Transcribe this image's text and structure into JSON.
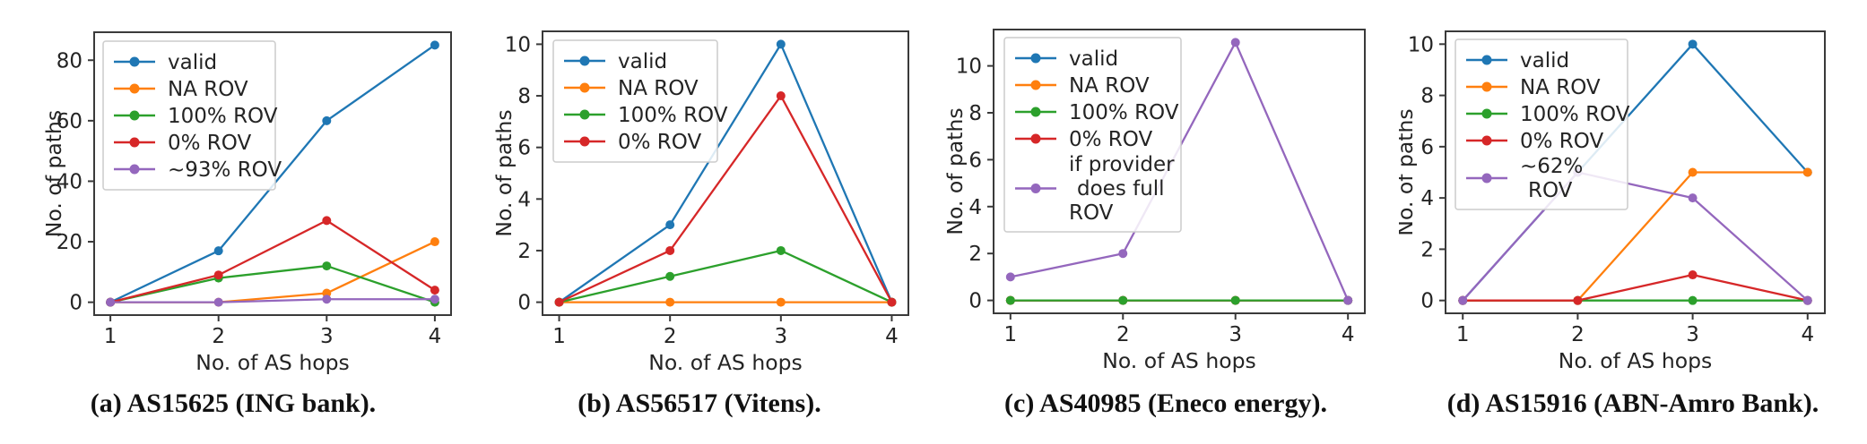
{
  "figure": {
    "xlabel": "No. of AS hops",
    "ylabel": "No. of paths"
  },
  "colors": {
    "valid": "#1f77b4",
    "na_rov": "#ff7f0e",
    "rov_100": "#2ca02c",
    "rov_0": "#d62728",
    "rov_partial": "#9467bd",
    "axis": "#3a3a3a",
    "legend_border": "#cccccc"
  },
  "chart_data": [
    {
      "type": "line",
      "caption": "(a) AS15625 (ING bank).",
      "xlabel": "No. of AS hops",
      "ylabel": "No. of paths",
      "x": [
        1,
        2,
        3,
        4
      ],
      "xticks": [
        1,
        2,
        3,
        4
      ],
      "xlim": [
        0.85,
        4.15
      ],
      "yticks": [
        0,
        20,
        40,
        60,
        80
      ],
      "ylim": [
        -4.25,
        89.25
      ],
      "legend_position": "upper left",
      "grid": false,
      "series": [
        {
          "label": "valid",
          "color": "#1f77b4",
          "values": [
            0,
            17,
            60,
            85
          ]
        },
        {
          "label": "NA ROV",
          "color": "#ff7f0e",
          "values": [
            0,
            0,
            3,
            20
          ]
        },
        {
          "label": "100% ROV",
          "color": "#2ca02c",
          "values": [
            0,
            8,
            12,
            0
          ]
        },
        {
          "label": "0% ROV",
          "color": "#d62728",
          "values": [
            0,
            9,
            27,
            4
          ]
        },
        {
          "label": "~93% ROV",
          "color": "#9467bd",
          "values": [
            0,
            0,
            1,
            1
          ]
        }
      ]
    },
    {
      "type": "line",
      "caption": "(b) AS56517 (Vitens).",
      "xlabel": "No. of AS hops",
      "ylabel": "No. of paths",
      "x": [
        1,
        2,
        3,
        4
      ],
      "xticks": [
        1,
        2,
        3,
        4
      ],
      "xlim": [
        0.85,
        4.15
      ],
      "yticks": [
        0,
        2,
        4,
        6,
        8,
        10
      ],
      "ylim": [
        -0.5,
        10.5
      ],
      "legend_position": "upper left",
      "grid": false,
      "series": [
        {
          "label": "valid",
          "color": "#1f77b4",
          "values": [
            0,
            3,
            10,
            0
          ]
        },
        {
          "label": "NA ROV",
          "color": "#ff7f0e",
          "values": [
            0,
            0,
            0,
            0
          ]
        },
        {
          "label": "100% ROV",
          "color": "#2ca02c",
          "values": [
            0,
            1,
            2,
            0
          ]
        },
        {
          "label": "0% ROV",
          "color": "#d62728",
          "values": [
            0,
            2,
            8,
            0
          ]
        }
      ]
    },
    {
      "type": "line",
      "caption": "(c) AS40985 (Eneco energy).",
      "xlabel": "No. of AS hops",
      "ylabel": "No. of paths",
      "x": [
        1,
        2,
        3,
        4
      ],
      "xticks": [
        1,
        2,
        3,
        4
      ],
      "xlim": [
        0.85,
        4.15
      ],
      "yticks": [
        0,
        2,
        4,
        6,
        8,
        10
      ],
      "ylim": [
        -0.55,
        11.55
      ],
      "legend_position": "upper left",
      "grid": false,
      "draw_order": [
        0,
        1,
        3,
        2,
        4
      ],
      "series": [
        {
          "label": "valid",
          "color": "#1f77b4",
          "values": [
            0,
            0,
            0,
            0
          ]
        },
        {
          "label": "NA ROV",
          "color": "#ff7f0e",
          "values": [
            0,
            0,
            0,
            0
          ]
        },
        {
          "label": "100% ROV",
          "color": "#2ca02c",
          "values": [
            0,
            0,
            0,
            0
          ]
        },
        {
          "label": "0% ROV",
          "color": "#d62728",
          "values": [
            0,
            0,
            0,
            0
          ]
        },
        {
          "label": "if provider does full ROV",
          "label_lines": [
            "if provider",
            " does full",
            "ROV"
          ],
          "color": "#9467bd",
          "values": [
            1,
            2,
            11,
            0
          ]
        }
      ]
    },
    {
      "type": "line",
      "caption": "(d) AS15916 (ABN-Amro Bank).",
      "xlabel": "No. of AS hops",
      "ylabel": "No. of paths",
      "x": [
        1,
        2,
        3,
        4
      ],
      "xticks": [
        1,
        2,
        3,
        4
      ],
      "xlim": [
        0.85,
        4.15
      ],
      "yticks": [
        0,
        2,
        4,
        6,
        8,
        10
      ],
      "ylim": [
        -0.5,
        10.5
      ],
      "legend_position": "upper left",
      "grid": false,
      "series": [
        {
          "label": "valid",
          "color": "#1f77b4",
          "values": [
            0,
            5,
            10,
            5
          ]
        },
        {
          "label": "NA ROV",
          "color": "#ff7f0e",
          "values": [
            0,
            0,
            5,
            5
          ]
        },
        {
          "label": "100% ROV",
          "color": "#2ca02c",
          "values": [
            0,
            0,
            0,
            0
          ]
        },
        {
          "label": "0% ROV",
          "color": "#d62728",
          "values": [
            0,
            0,
            1,
            0
          ]
        },
        {
          "label": "~62% ROV",
          "label_lines": [
            "~62%",
            " ROV"
          ],
          "color": "#9467bd",
          "values": [
            0,
            5,
            4,
            0
          ]
        }
      ]
    }
  ]
}
